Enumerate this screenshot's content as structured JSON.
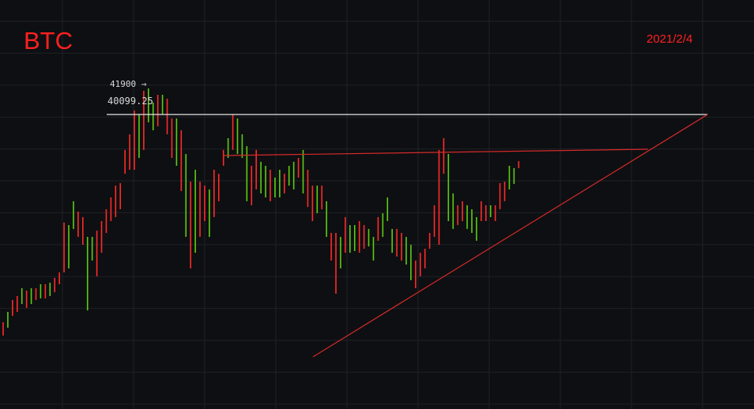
{
  "header": {
    "symbol": "BTC",
    "date": "2021/2/4"
  },
  "chart_data": {
    "type": "ohlc",
    "title": "BTC",
    "xlabel": "",
    "ylabel": "",
    "grid": true,
    "xlim": [
      -0.67,
      160.2
    ],
    "ylim": [
      22419,
      46972
    ],
    "colors": {
      "up": "#ff2a2a",
      "down": "#5ccc12",
      "background": "#0e0f12",
      "grid": "#1f2126"
    },
    "bar_fields": [
      "high",
      "low",
      "up"
    ],
    "bars": [
      [
        27630,
        26830,
        1
      ],
      [
        28250,
        27300,
        0
      ],
      [
        28960,
        28010,
        1
      ],
      [
        29200,
        28250,
        1
      ],
      [
        29670,
        28720,
        0
      ],
      [
        29530,
        28490,
        1
      ],
      [
        29670,
        28720,
        0
      ],
      [
        29670,
        28960,
        1
      ],
      [
        29910,
        29060,
        0
      ],
      [
        29910,
        29060,
        1
      ],
      [
        30000,
        29200,
        0
      ],
      [
        30290,
        29430,
        1
      ],
      [
        30620,
        29910,
        1
      ],
      [
        33610,
        30620,
        1
      ],
      [
        33460,
        30860,
        0
      ],
      [
        34890,
        33230,
        0
      ],
      [
        34270,
        32750,
        1
      ],
      [
        33940,
        32280,
        1
      ],
      [
        32750,
        28340,
        0
      ],
      [
        32750,
        31330,
        0
      ],
      [
        33130,
        30380,
        1
      ],
      [
        33700,
        31800,
        1
      ],
      [
        34410,
        32990,
        1
      ],
      [
        35120,
        33700,
        1
      ],
      [
        35830,
        33940,
        1
      ],
      [
        35980,
        34410,
        1
      ],
      [
        37970,
        36540,
        1
      ],
      [
        38910,
        36780,
        1
      ],
      [
        40340,
        36780,
        1
      ],
      [
        40100,
        37490,
        0
      ],
      [
        41520,
        37970,
        1
      ],
      [
        41660,
        39630,
        0
      ],
      [
        40810,
        39150,
        0
      ],
      [
        41280,
        39390,
        1
      ],
      [
        41280,
        40100,
        0
      ],
      [
        41050,
        38910,
        1
      ],
      [
        39860,
        37490,
        1
      ],
      [
        39860,
        37020,
        0
      ],
      [
        39150,
        35500,
        1
      ],
      [
        37730,
        32750,
        0
      ],
      [
        36070,
        30860,
        1
      ],
      [
        36780,
        31800,
        0
      ],
      [
        36070,
        32750,
        1
      ],
      [
        35830,
        33700,
        1
      ],
      [
        35600,
        32750,
        0
      ],
      [
        36780,
        33940,
        1
      ],
      [
        36540,
        34890,
        1
      ],
      [
        37970,
        37020,
        1
      ],
      [
        38680,
        37490,
        0
      ],
      [
        40100,
        37970,
        1
      ],
      [
        39860,
        37730,
        0
      ],
      [
        38910,
        37490,
        0
      ],
      [
        38200,
        34890,
        0
      ],
      [
        37020,
        34650,
        1
      ],
      [
        37970,
        35600,
        1
      ],
      [
        37260,
        35360,
        0
      ],
      [
        37020,
        35120,
        0
      ],
      [
        36780,
        34890,
        1
      ],
      [
        36310,
        35120,
        0
      ],
      [
        36780,
        35120,
        0
      ],
      [
        36540,
        35360,
        1
      ],
      [
        37020,
        35830,
        0
      ],
      [
        37260,
        35600,
        0
      ],
      [
        37490,
        36310,
        1
      ],
      [
        37970,
        35360,
        0
      ],
      [
        36780,
        34550,
        1
      ],
      [
        35830,
        33700,
        1
      ],
      [
        35830,
        34170,
        0
      ],
      [
        35830,
        34410,
        1
      ],
      [
        34890,
        32750,
        0
      ],
      [
        32990,
        31330,
        1
      ],
      [
        32990,
        29340,
        1
      ],
      [
        32750,
        30860,
        0
      ],
      [
        33940,
        31800,
        1
      ],
      [
        33460,
        31800,
        0
      ],
      [
        33460,
        31900,
        0
      ],
      [
        33700,
        31800,
        1
      ],
      [
        33460,
        32040,
        1
      ],
      [
        33230,
        32180,
        0
      ],
      [
        32750,
        31330,
        0
      ],
      [
        33940,
        32520,
        1
      ],
      [
        34170,
        32750,
        0
      ],
      [
        35120,
        33700,
        0
      ],
      [
        33230,
        31800,
        0
      ],
      [
        33230,
        31570,
        1
      ],
      [
        32990,
        31330,
        1
      ],
      [
        32750,
        31090,
        0
      ],
      [
        32280,
        30150,
        0
      ],
      [
        31330,
        29670,
        1
      ],
      [
        31800,
        30380,
        1
      ],
      [
        32040,
        30860,
        1
      ],
      [
        32990,
        32040,
        1
      ],
      [
        34650,
        32750,
        1
      ],
      [
        37970,
        32280,
        1
      ],
      [
        38680,
        36540,
        1
      ],
      [
        37730,
        33700,
        0
      ],
      [
        35360,
        33230,
        0
      ],
      [
        34650,
        33460,
        1
      ],
      [
        34890,
        33700,
        1
      ],
      [
        34650,
        33230,
        0
      ],
      [
        34410,
        32990,
        0
      ],
      [
        33940,
        32520,
        0
      ],
      [
        34890,
        33700,
        1
      ],
      [
        34650,
        33700,
        1
      ],
      [
        34650,
        33940,
        0
      ],
      [
        34650,
        33700,
        1
      ],
      [
        35980,
        34410,
        1
      ],
      [
        36070,
        34890,
        1
      ],
      [
        37020,
        35600,
        0
      ],
      [
        36880,
        35930,
        0
      ],
      [
        37300,
        36880,
        1
      ]
    ],
    "annotations": {
      "high_marker": "41900 →",
      "level_label": "40099.25"
    },
    "lines": [
      {
        "name": "level-line",
        "color": "#e6e6e6",
        "x": [
          22.1,
          150.3
        ],
        "y": [
          40099.25,
          40099.25
        ]
      },
      {
        "name": "resistance-line",
        "color": "#d42a2a",
        "x": [
          47.0,
          137.6
        ],
        "y": [
          37634,
          38013
        ]
      },
      {
        "name": "support-line",
        "color": "#d42a2a",
        "x": [
          66.1,
          150.3
        ],
        "y": [
          25547,
          40099
        ]
      }
    ]
  }
}
